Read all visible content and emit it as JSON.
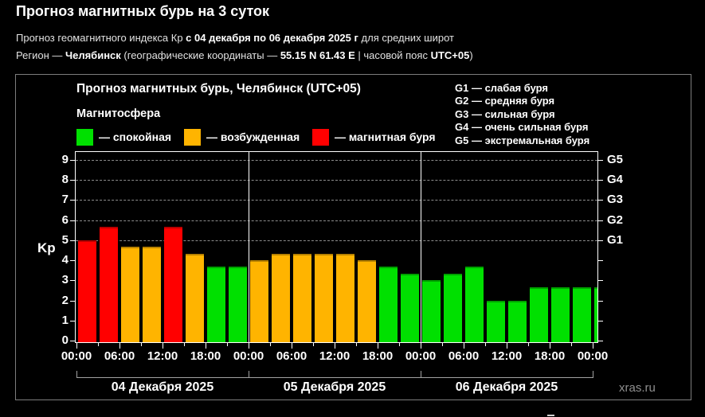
{
  "page": {
    "title": "Прогноз магнитных бурь на 3 суток",
    "subtitle1": {
      "part1": "Прогноз геомагнитного индекса Кр ",
      "bold1": "с 04 декабря по 06 декабря 2025 г",
      "part2": " для средних широт"
    },
    "subtitle2": {
      "part1": "Регион — ",
      "bold1": "Челябинск",
      "part2": " (географические координаты — ",
      "bold2": "55.15 N 61.43 E",
      "part3": " | часовой пояс ",
      "bold3": "UTC+05",
      "part4": ")"
    },
    "watermark": "xras.ru"
  },
  "chart_data": {
    "type": "bar",
    "title": "Прогноз магнитных бурь, Челябинск (UTC+05)",
    "legend_title": "Магнитосфера",
    "legend": [
      {
        "label": "— спокойная",
        "color": "#00e000",
        "meaning": "quiet"
      },
      {
        "label": "— возбужденная",
        "color": "#ffb400",
        "meaning": "unsettled"
      },
      {
        "label": "— магнитная буря",
        "color": "#ff0000",
        "meaning": "storm"
      }
    ],
    "storm_scale_legend": [
      "G1 — слабая буря",
      "G2 — средняя буря",
      "G3 — сильная буря",
      "G4 — очень сильная буря",
      "G5 — экстремальная буря"
    ],
    "ylabel": "Kp",
    "ylim": [
      0,
      9
    ],
    "yticks": [
      0,
      1,
      2,
      3,
      4,
      5,
      6,
      7,
      8,
      9
    ],
    "right_axis_labels": [
      {
        "label": "G1",
        "kp": 5
      },
      {
        "label": "G2",
        "kp": 6
      },
      {
        "label": "G3",
        "kp": 7
      },
      {
        "label": "G4",
        "kp": 8
      },
      {
        "label": "G5",
        "kp": 9
      }
    ],
    "gridlines_at": [
      5,
      6,
      7,
      8,
      9
    ],
    "grid": "dashed horizontal at G-levels",
    "legend_position": "top",
    "interval_hours": 3,
    "x_tick_labels": [
      "00:00",
      "06:00",
      "12:00",
      "18:00",
      "00:00",
      "06:00",
      "12:00",
      "18:00",
      "00:00",
      "06:00",
      "12:00",
      "18:00",
      "00:00"
    ],
    "days": [
      {
        "date": "04 Декабря 2025",
        "values": [
          5.0,
          5.67,
          4.67,
          4.67,
          5.67,
          4.33,
          3.67,
          3.67
        ]
      },
      {
        "date": "05 Декабря 2025",
        "values": [
          4.0,
          4.33,
          4.33,
          4.33,
          4.33,
          4.0,
          3.67,
          3.33
        ]
      },
      {
        "date": "06 Декабря 2025",
        "values": [
          3.0,
          3.33,
          3.67,
          2.0,
          2.0,
          2.67,
          2.67,
          2.67
        ]
      }
    ],
    "clipped_next_value": 2.67,
    "color_thresholds": {
      "storm_min_kp": 5,
      "unsettled_min_kp": 4
    }
  }
}
